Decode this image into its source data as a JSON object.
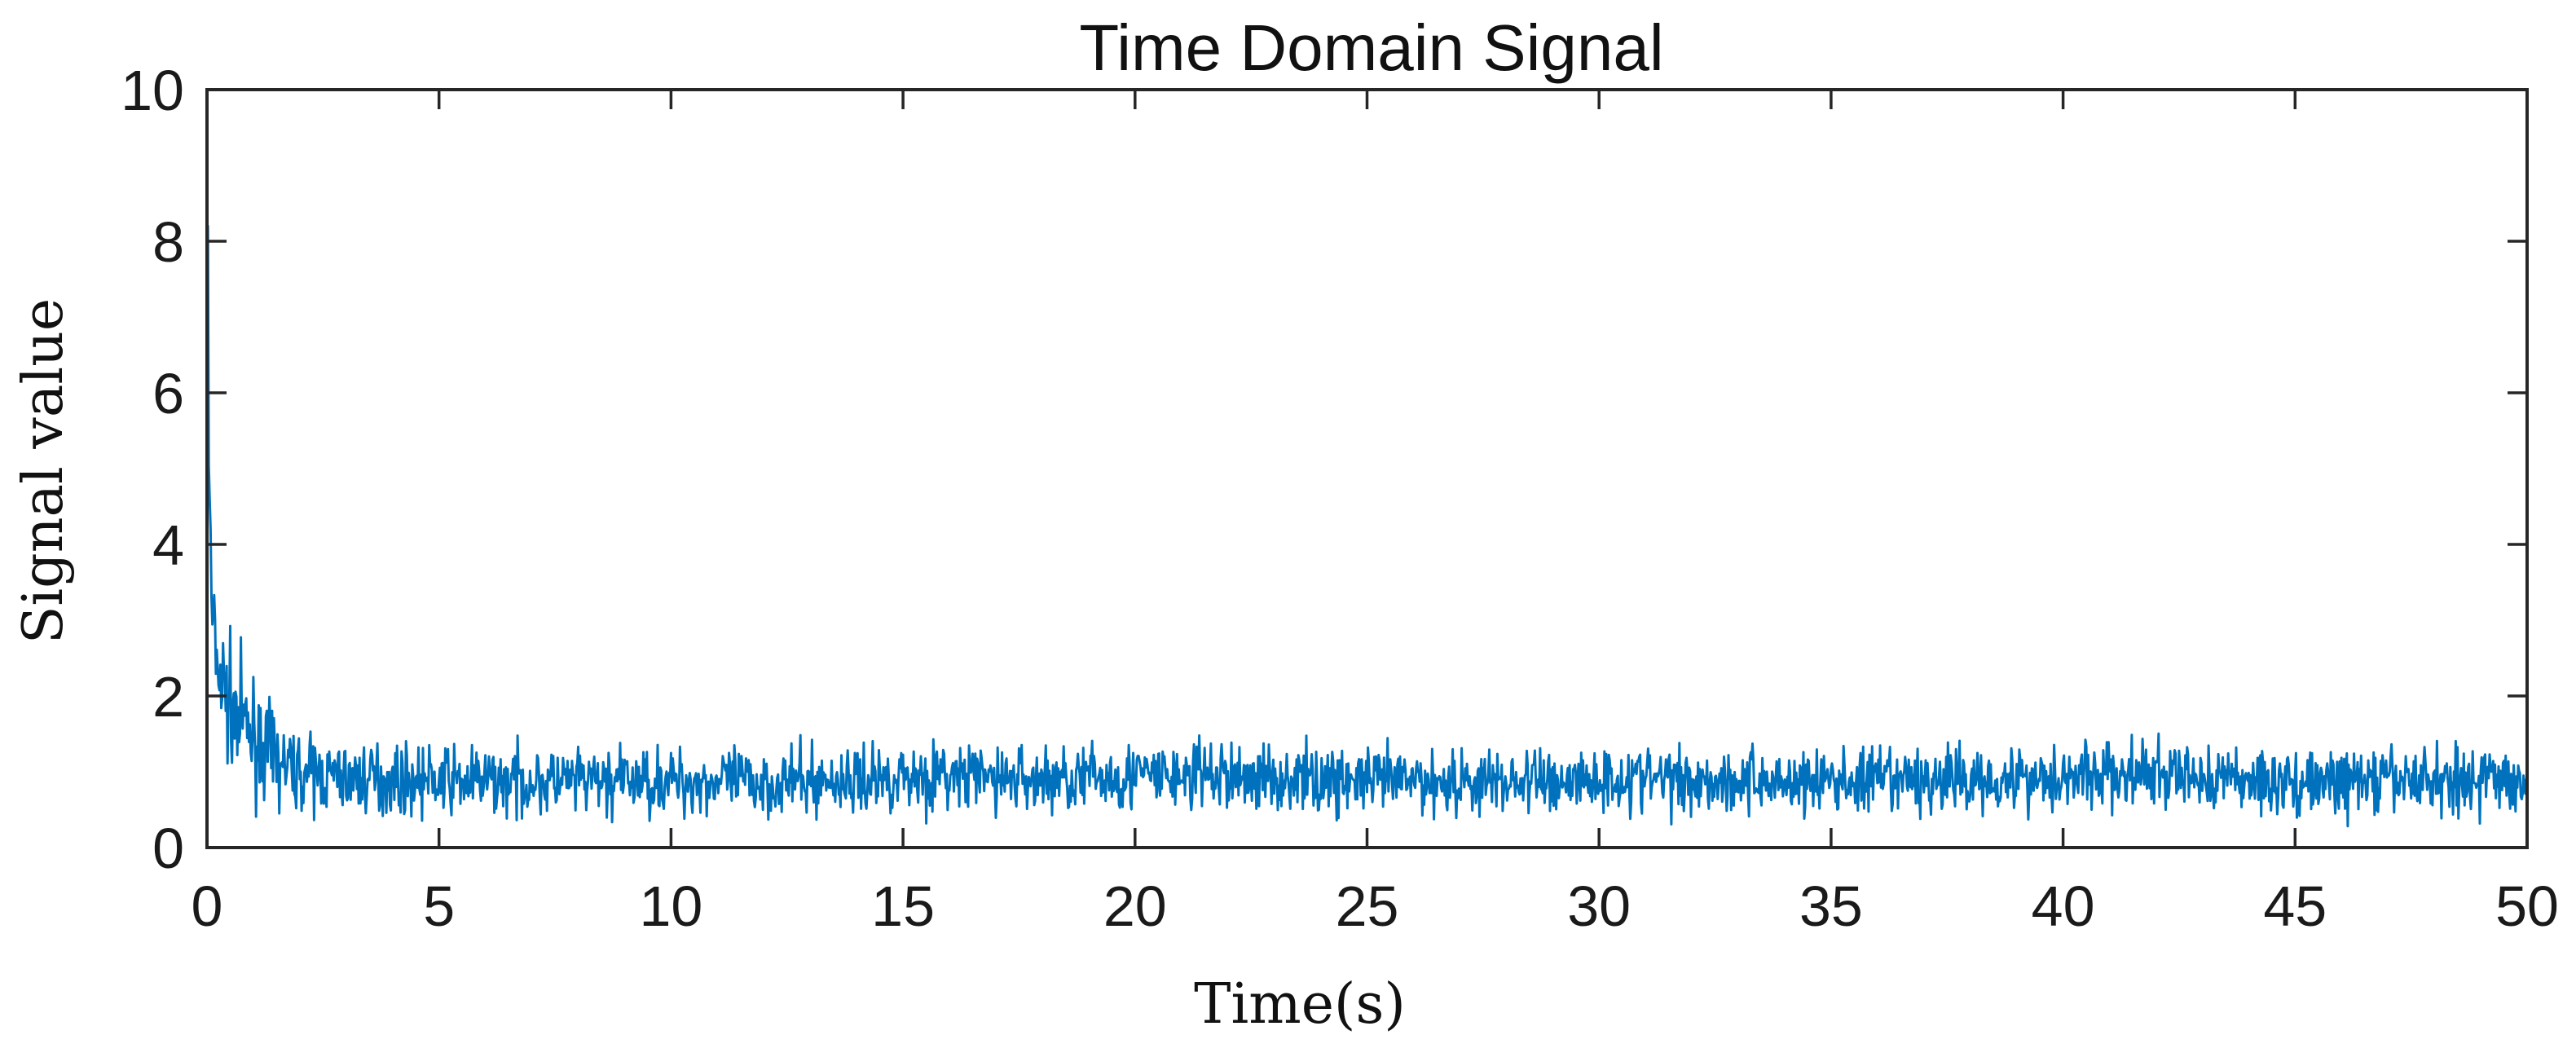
{
  "chart_data": {
    "type": "line",
    "title": "Time Domain Signal",
    "xlabel": "Time(s)",
    "ylabel": "Signal value",
    "xlim": [
      0,
      50
    ],
    "ylim": [
      0,
      10
    ],
    "xticks": [
      0,
      5,
      10,
      15,
      20,
      25,
      30,
      35,
      40,
      45,
      50
    ],
    "yticks": [
      0,
      2,
      4,
      6,
      8,
      10
    ],
    "xtick_labels": [
      "0",
      "5",
      "10",
      "15",
      "20",
      "25",
      "30",
      "35",
      "40",
      "45",
      "50"
    ],
    "ytick_labels": [
      "0",
      "2",
      "4",
      "6",
      "8",
      "10"
    ],
    "grid": false,
    "legend": false,
    "line_color": "#0072BD",
    "series": [
      {
        "x": [
          0.0,
          0.05,
          0.1,
          0.2,
          0.3,
          0.45,
          0.6,
          0.8,
          1.0,
          1.25,
          1.5,
          1.75,
          2.0,
          2.5,
          3.0,
          4.0,
          5.0,
          6.0,
          7.0,
          8.0,
          9.0,
          10.0,
          11.0,
          12.0,
          13.0,
          14.0,
          15.0,
          16.0,
          17.0,
          18.0,
          19.0,
          20.0,
          21.0,
          21.5,
          22.0,
          23.0,
          24.0,
          25.0,
          26.0,
          27.0,
          28.0,
          29.0,
          30.0,
          31.0,
          32.0,
          33.0,
          34.0,
          35.0,
          36.0,
          37.0,
          38.0,
          39.0,
          40.0,
          41.0,
          42.0,
          43.0,
          44.0,
          45.0,
          46.0,
          47.0,
          48.0,
          49.0,
          50.0
        ],
        "y": [
          8.2,
          4.6,
          3.1,
          2.5,
          2.2,
          1.95,
          1.75,
          1.6,
          1.45,
          1.3,
          1.15,
          1.05,
          1.0,
          0.95,
          0.92,
          0.9,
          0.88,
          0.88,
          0.87,
          0.86,
          0.88,
          0.88,
          0.87,
          0.86,
          0.87,
          0.88,
          0.95,
          0.93,
          0.92,
          0.9,
          0.92,
          0.95,
          0.93,
          0.96,
          0.93,
          0.92,
          0.9,
          0.88,
          0.88,
          0.87,
          0.87,
          0.88,
          0.9,
          0.92,
          0.9,
          0.88,
          0.88,
          0.87,
          0.87,
          0.88,
          0.9,
          0.92,
          0.95,
          0.95,
          0.94,
          0.92,
          0.9,
          0.85,
          0.86,
          0.88,
          0.9,
          0.9,
          0.9
        ]
      }
    ]
  }
}
